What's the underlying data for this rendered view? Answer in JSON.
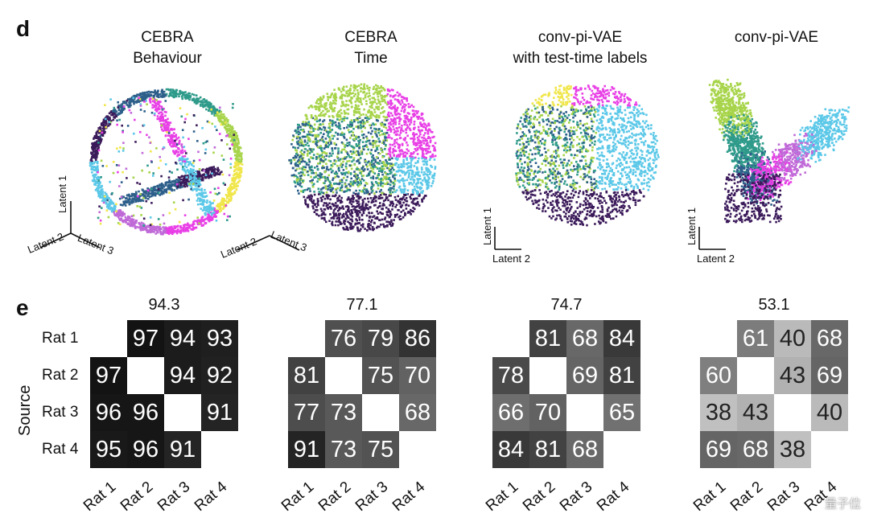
{
  "panel_d": {
    "letter": "d",
    "plots": [
      {
        "title_line1": "CEBRA",
        "title_line2": "Behaviour",
        "axes": [
          "Latent 1",
          "Latent 2",
          "Latent 3"
        ]
      },
      {
        "title_line1": "CEBRA",
        "title_line2": "Time",
        "axes": [
          "Latent 2",
          "Latent 3"
        ]
      },
      {
        "title_line1": "conv-pi-VAE",
        "title_line2": "with test-time labels",
        "axes": [
          "Latent 1",
          "Latent 2"
        ]
      },
      {
        "title_line1": "conv-pi-VAE",
        "title_line2": "",
        "axes": [
          "Latent 1",
          "Latent 2"
        ]
      }
    ],
    "colormap": [
      "#3b1a5a",
      "#2d5f8a",
      "#2e9a8a",
      "#a7d44a",
      "#f0e64a",
      "#e83fe6",
      "#c06ad8",
      "#5bc8e8"
    ]
  },
  "panel_e": {
    "letter": "e",
    "ylabel": "Source",
    "row_labels": [
      "Rat 1",
      "Rat 2",
      "Rat 3",
      "Rat 4"
    ],
    "col_labels": [
      "Rat 1",
      "Rat 2",
      "Rat 3",
      "Rat 4"
    ],
    "matrices": [
      {
        "score": "94.3",
        "values": [
          [
            null,
            97,
            94,
            93
          ],
          [
            97,
            null,
            94,
            92
          ],
          [
            96,
            96,
            null,
            91
          ],
          [
            95,
            96,
            91,
            null
          ]
        ]
      },
      {
        "score": "77.1",
        "values": [
          [
            null,
            76,
            79,
            86
          ],
          [
            81,
            null,
            75,
            70
          ],
          [
            77,
            73,
            null,
            68
          ],
          [
            91,
            73,
            75,
            null
          ]
        ]
      },
      {
        "score": "74.7",
        "values": [
          [
            null,
            81,
            68,
            84
          ],
          [
            78,
            null,
            69,
            81
          ],
          [
            66,
            70,
            null,
            65
          ],
          [
            84,
            81,
            68,
            null
          ]
        ]
      },
      {
        "score": "53.1",
        "values": [
          [
            null,
            61,
            40,
            68
          ],
          [
            60,
            null,
            43,
            69
          ],
          [
            38,
            43,
            null,
            40
          ],
          [
            69,
            68,
            38,
            null
          ]
        ]
      }
    ]
  },
  "watermark": "量子位"
}
